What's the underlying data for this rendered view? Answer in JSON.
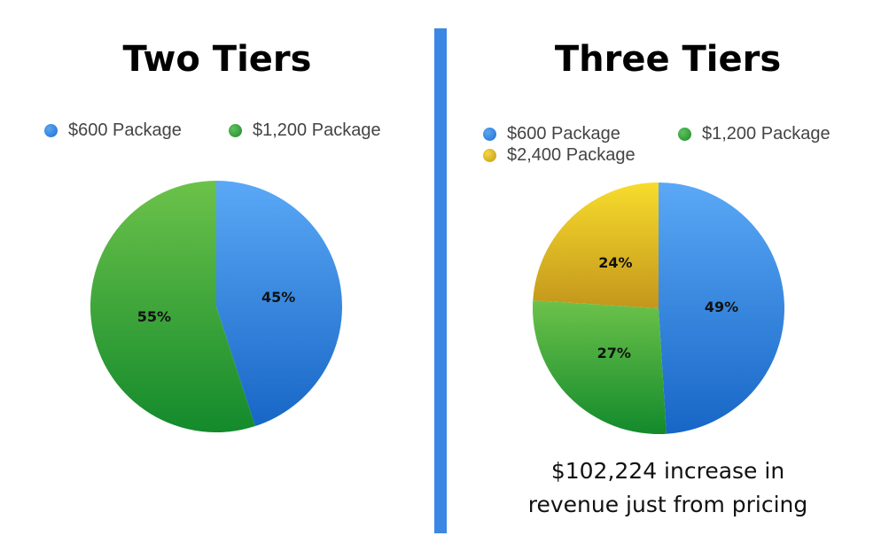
{
  "colors": {
    "blue": "#3b8be4",
    "green": "#3aa53a",
    "yellow": "#e0bd24",
    "divider": "#3b87e4"
  },
  "left": {
    "title": "Two Tiers"
  },
  "right": {
    "title": "Three Tiers",
    "caption_line1": "$102,224 increase in",
    "caption_line2": "revenue just from pricing"
  },
  "chart_data": [
    {
      "type": "pie",
      "title": "Two Tiers",
      "legend": "top",
      "slices": [
        {
          "name": "$600 Package",
          "value": 45,
          "label": "45%",
          "color": "#3b8be4"
        },
        {
          "name": "$1,200 Package",
          "value": 55,
          "label": "55%",
          "color": "#3aa53a"
        }
      ]
    },
    {
      "type": "pie",
      "title": "Three Tiers",
      "legend": "top",
      "slices": [
        {
          "name": "$600 Package",
          "value": 49,
          "label": "49%",
          "color": "#3b8be4"
        },
        {
          "name": "$1,200 Package",
          "value": 27,
          "label": "27%",
          "color": "#3aa53a"
        },
        {
          "name": "$2,400 Package",
          "value": 24,
          "label": "24%",
          "color": "#e0bd24"
        }
      ]
    }
  ]
}
